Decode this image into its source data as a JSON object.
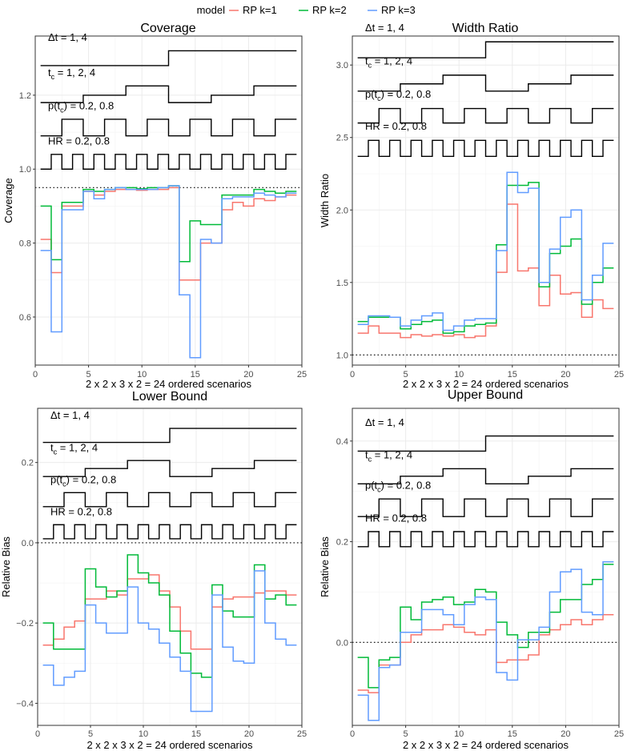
{
  "legend": {
    "title": "model",
    "entries": [
      {
        "label": "RP k=1",
        "color": "#F8766D"
      },
      {
        "label": "RP k=2",
        "color": "#00BA38"
      },
      {
        "label": "RP k=3",
        "color": "#619CFF"
      }
    ]
  },
  "step_labels": {
    "dt": "Δt = 1,  4",
    "tc_main": "t",
    "tc_sub": "c",
    "tc_vals": " = 1,  2,  4",
    "p_main": "p(t",
    "p_sub": "c",
    "p_vals": ") = 0.2,  0.8",
    "hr": "HR = 0.2,  0.8"
  },
  "chart_data": [
    {
      "type": "line",
      "title": "Coverage",
      "xlabel": "2 x 2 x 3 x 2 = 24 ordered scenarios",
      "ylabel": "Coverage",
      "xlim": [
        0,
        25
      ],
      "ylim": [
        0.47,
        1.36
      ],
      "xticks": [
        0,
        5,
        10,
        15,
        20,
        25
      ],
      "yticks": [
        0.6,
        0.8,
        1.0,
        1.2
      ],
      "ytick_labels": [
        "0.6",
        "0.8",
        "1.0",
        "1.2"
      ],
      "reference_line": 0.95,
      "step_levels": {
        "dt": [
          1.28,
          1.32
        ],
        "tc": [
          1.18,
          1.2,
          1.225
        ],
        "p": [
          1.09,
          1.135
        ],
        "hr": [
          1.0,
          1.04
        ]
      },
      "series": [
        {
          "name": "RP k=1",
          "values": [
            0.81,
            0.72,
            0.9,
            0.9,
            0.94,
            0.93,
            0.94,
            0.945,
            0.945,
            0.943,
            0.945,
            0.945,
            0.95,
            0.7,
            0.7,
            0.8,
            0.8,
            0.89,
            0.91,
            0.9,
            0.92,
            0.915,
            0.925,
            0.93
          ]
        },
        {
          "name": "RP k=2",
          "values": [
            0.9,
            0.755,
            0.91,
            0.91,
            0.945,
            0.94,
            0.945,
            0.95,
            0.95,
            0.947,
            0.95,
            0.95,
            0.955,
            0.75,
            0.86,
            0.85,
            0.85,
            0.93,
            0.93,
            0.93,
            0.945,
            0.94,
            0.935,
            0.94
          ]
        },
        {
          "name": "RP k=3",
          "values": [
            0.78,
            0.56,
            0.89,
            0.89,
            0.94,
            0.92,
            0.945,
            0.95,
            0.945,
            0.945,
            0.945,
            0.95,
            0.955,
            0.66,
            0.49,
            0.81,
            0.8,
            0.92,
            0.925,
            0.925,
            0.935,
            0.93,
            0.925,
            0.935
          ]
        }
      ]
    },
    {
      "type": "line",
      "title": "Width Ratio",
      "xlabel": "2 x 2 x 3 x 2 = 24 ordered scenarios",
      "ylabel": "Width Ratio",
      "xlim": [
        0,
        25
      ],
      "ylim": [
        0.93,
        3.2
      ],
      "xticks": [
        0,
        5,
        10,
        15,
        20,
        25
      ],
      "yticks": [
        1.0,
        1.5,
        2.0,
        2.5,
        3.0
      ],
      "ytick_labels": [
        "1.0",
        "1.5",
        "2.0",
        "2.5",
        "3.0"
      ],
      "reference_line": 1.0,
      "step_levels": {
        "dt": [
          3.05,
          3.16
        ],
        "tc": [
          2.82,
          2.87,
          2.93
        ],
        "p": [
          2.6,
          2.7
        ],
        "hr": [
          2.37,
          2.48
        ]
      },
      "series": [
        {
          "name": "RP k=1",
          "values": [
            1.15,
            1.2,
            1.15,
            1.15,
            1.12,
            1.14,
            1.13,
            1.14,
            1.13,
            1.14,
            1.12,
            1.13,
            1.2,
            1.57,
            2.04,
            1.58,
            1.6,
            1.34,
            1.55,
            1.42,
            1.43,
            1.26,
            1.38,
            1.32
          ]
        },
        {
          "name": "RP k=2",
          "values": [
            1.23,
            1.26,
            1.26,
            1.26,
            1.18,
            1.21,
            1.23,
            1.24,
            1.15,
            1.16,
            1.2,
            1.21,
            1.22,
            1.76,
            2.17,
            2.17,
            2.19,
            1.47,
            1.7,
            1.75,
            1.8,
            1.35,
            1.5,
            1.6
          ]
        },
        {
          "name": "RP k=3",
          "values": [
            1.21,
            1.27,
            1.27,
            1.26,
            1.2,
            1.24,
            1.27,
            1.29,
            1.17,
            1.2,
            1.24,
            1.25,
            1.25,
            1.72,
            2.26,
            2.12,
            2.15,
            1.5,
            1.73,
            1.95,
            2.0,
            1.38,
            1.55,
            1.77
          ]
        }
      ]
    },
    {
      "type": "line",
      "title": "Lower Bound",
      "xlabel": "2 x 2 x 3 x 2 = 24 ordered scenarios",
      "ylabel": "Relative Bias",
      "xlim": [
        0,
        25
      ],
      "ylim": [
        -0.455,
        0.335
      ],
      "xticks": [
        0,
        5,
        10,
        15,
        20,
        25
      ],
      "yticks": [
        -0.4,
        -0.2,
        0.0,
        0.2
      ],
      "ytick_labels": [
        "−0.4",
        "−0.2",
        "0.0",
        "0.2"
      ],
      "reference_line": 0.0,
      "step_levels": {
        "dt": [
          0.25,
          0.285
        ],
        "tc": [
          0.165,
          0.185,
          0.205
        ],
        "p": [
          0.09,
          0.125
        ],
        "hr": [
          0.01,
          0.045
        ]
      },
      "series": [
        {
          "name": "RP k=1",
          "values": [
            -0.255,
            -0.24,
            -0.21,
            -0.195,
            -0.14,
            -0.14,
            -0.12,
            -0.13,
            -0.09,
            -0.09,
            -0.08,
            -0.12,
            -0.16,
            -0.22,
            -0.265,
            -0.265,
            -0.16,
            -0.14,
            -0.135,
            -0.135,
            -0.125,
            -0.12,
            -0.12,
            -0.13
          ]
        },
        {
          "name": "RP k=2",
          "values": [
            -0.2,
            -0.265,
            -0.265,
            -0.265,
            -0.065,
            -0.11,
            -0.135,
            -0.12,
            -0.03,
            -0.075,
            -0.1,
            -0.13,
            -0.22,
            -0.275,
            -0.325,
            -0.335,
            -0.105,
            -0.17,
            -0.185,
            -0.185,
            -0.055,
            -0.14,
            -0.13,
            -0.155
          ]
        },
        {
          "name": "RP k=3",
          "values": [
            -0.305,
            -0.355,
            -0.335,
            -0.32,
            -0.155,
            -0.2,
            -0.225,
            -0.225,
            -0.11,
            -0.2,
            -0.215,
            -0.25,
            -0.285,
            -0.32,
            -0.42,
            -0.42,
            -0.13,
            -0.26,
            -0.295,
            -0.3,
            -0.07,
            -0.2,
            -0.24,
            -0.255
          ]
        }
      ]
    },
    {
      "type": "line",
      "title": "Upper Bound",
      "xlabel": "2 x 2 x 3 x 2 = 24 ordered scenarios",
      "ylabel": "Relative Bias",
      "xlim": [
        0,
        25
      ],
      "ylim": [
        -0.165,
        0.465
      ],
      "xticks": [
        0,
        5,
        10,
        15,
        20,
        25
      ],
      "yticks": [
        0.0,
        0.2,
        0.4
      ],
      "ytick_labels": [
        "0.0",
        "0.2",
        "0.4"
      ],
      "reference_line": 0.0,
      "step_levels": {
        "dt": [
          0.38,
          0.41
        ],
        "tc": [
          0.315,
          0.33,
          0.345
        ],
        "p": [
          0.25,
          0.285
        ],
        "hr": [
          0.19,
          0.22
        ]
      },
      "series": [
        {
          "name": "RP k=1",
          "values": [
            -0.095,
            -0.1,
            -0.045,
            -0.045,
            0.0,
            0.015,
            0.025,
            0.025,
            0.035,
            0.03,
            0.02,
            0.015,
            0.025,
            -0.04,
            -0.035,
            -0.035,
            -0.025,
            0.015,
            0.025,
            0.035,
            0.045,
            0.035,
            0.045,
            0.055
          ]
        },
        {
          "name": "RP k=2",
          "values": [
            -0.03,
            -0.09,
            -0.035,
            -0.03,
            0.07,
            0.045,
            0.08,
            0.085,
            0.09,
            0.075,
            0.08,
            0.105,
            0.1,
            0.04,
            0.015,
            -0.01,
            0.02,
            0.02,
            0.06,
            0.085,
            0.085,
            0.115,
            0.125,
            0.155
          ]
        },
        {
          "name": "RP k=3",
          "values": [
            -0.105,
            -0.155,
            -0.05,
            -0.045,
            0.02,
            0.02,
            0.065,
            0.065,
            0.055,
            0.035,
            0.075,
            0.09,
            0.085,
            -0.06,
            -0.075,
            0.005,
            0.005,
            0.03,
            0.1,
            0.14,
            0.145,
            0.06,
            0.055,
            0.16
          ]
        }
      ]
    }
  ]
}
